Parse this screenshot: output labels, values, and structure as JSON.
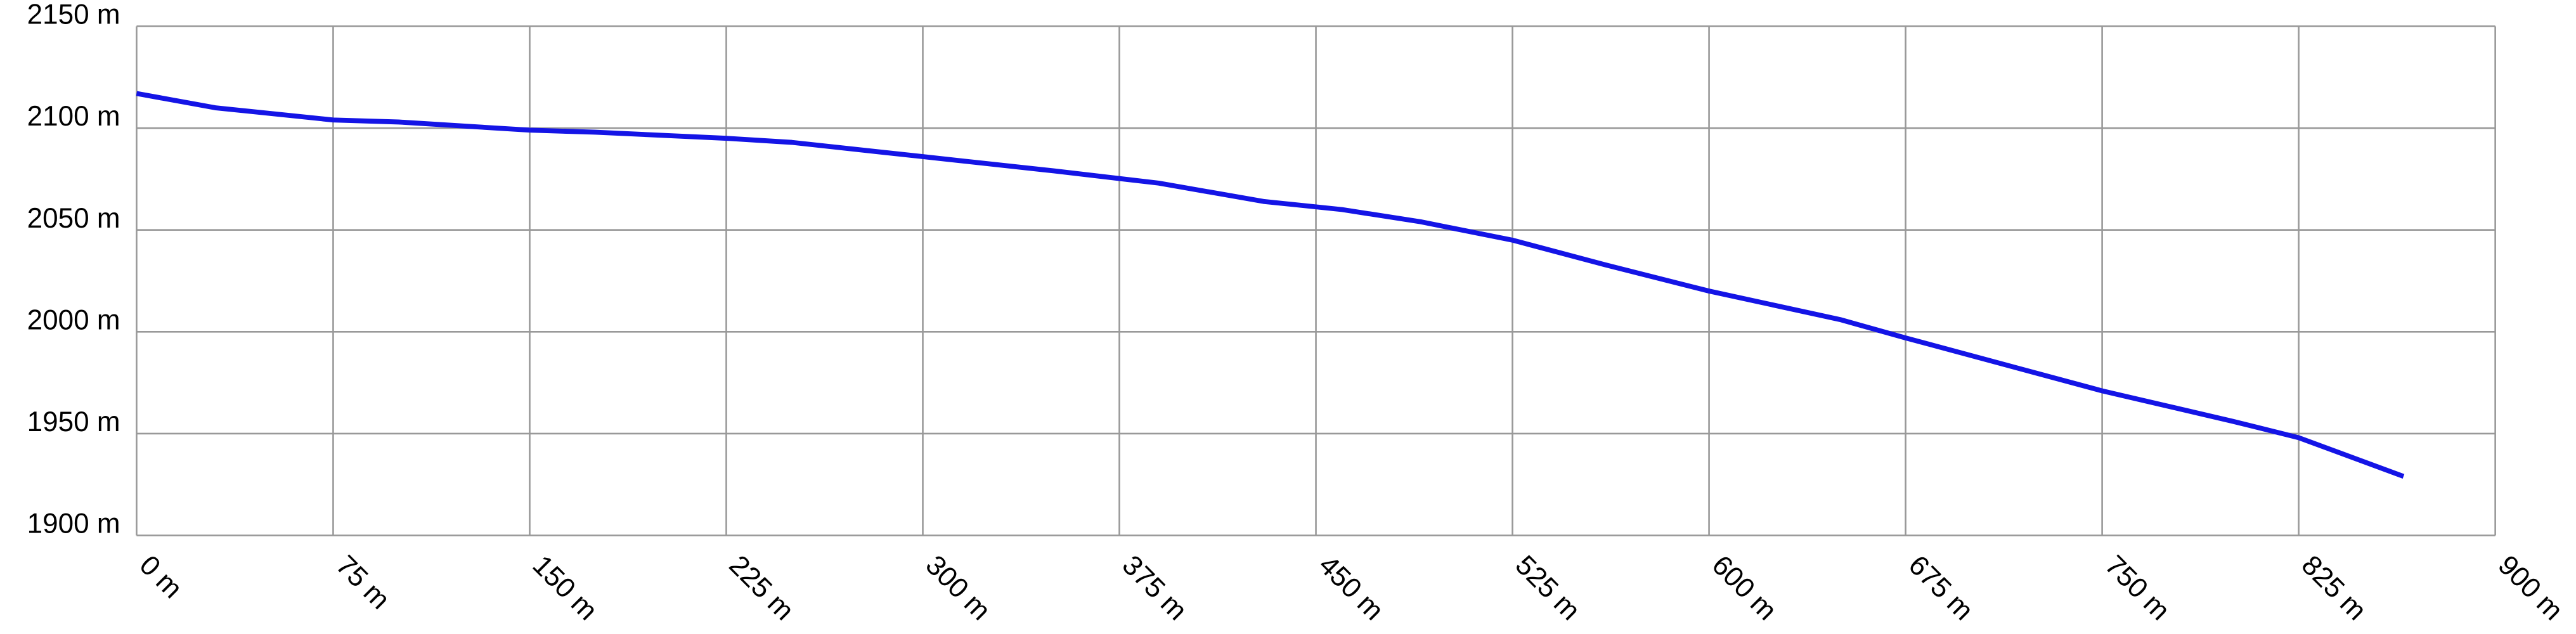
{
  "chart_data": {
    "type": "line",
    "x": [
      0,
      30,
      75,
      100,
      150,
      175,
      225,
      250,
      300,
      350,
      390,
      430,
      460,
      490,
      525,
      560,
      600,
      650,
      675,
      750,
      800,
      825,
      865
    ],
    "series": [
      {
        "color": "#1414e6",
        "values": [
          2117,
          2110,
          2104,
          2103,
          2099,
          2098,
          2095,
          2093,
          2086,
          2079,
          2073,
          2064,
          2060,
          2054,
          2045,
          2033,
          2020,
          2006,
          1997,
          1971,
          1956,
          1948,
          1929
        ]
      }
    ],
    "xlim": [
      0,
      900
    ],
    "xticks": [
      {
        "value": 0,
        "label": "0 m"
      },
      {
        "value": 75,
        "label": "75 m"
      },
      {
        "value": 150,
        "label": "150 m"
      },
      {
        "value": 225,
        "label": "225 m"
      },
      {
        "value": 300,
        "label": "300 m"
      },
      {
        "value": 375,
        "label": "375 m"
      },
      {
        "value": 450,
        "label": "450 m"
      },
      {
        "value": 525,
        "label": "525 m"
      },
      {
        "value": 600,
        "label": "600 m"
      },
      {
        "value": 675,
        "label": "675 m"
      },
      {
        "value": 750,
        "label": "750 m"
      },
      {
        "value": 825,
        "label": "825 m"
      },
      {
        "value": 900,
        "label": "900 m"
      }
    ],
    "ylim": [
      1900,
      2150
    ],
    "yticks": [
      {
        "value": 1900,
        "label": "1900 m"
      },
      {
        "value": 1950,
        "label": "1950 m"
      },
      {
        "value": 2000,
        "label": "2000 m"
      },
      {
        "value": 2050,
        "label": "2050 m"
      },
      {
        "value": 2100,
        "label": "2100 m"
      },
      {
        "value": 2150,
        "label": "2150 m"
      }
    ],
    "grid": true
  }
}
